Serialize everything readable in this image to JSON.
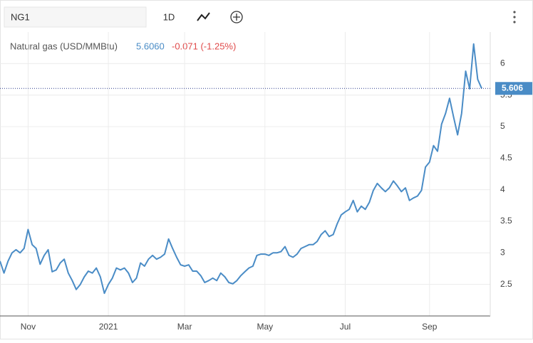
{
  "toolbar": {
    "symbol": "NG1",
    "interval": "1D"
  },
  "chart_data": {
    "type": "line",
    "title": "Natural gas (USD/MMBtu)",
    "price_label": "5.6060",
    "change": "-0.071 (-1.25%)",
    "last_price": 5.606,
    "categories": [
      null,
      null,
      null,
      null,
      null,
      null,
      null,
      "Nov",
      null,
      null,
      null,
      null,
      null,
      null,
      null,
      null,
      null,
      null,
      null,
      null,
      null,
      null,
      null,
      null,
      null,
      null,
      null,
      "2021",
      null,
      null,
      null,
      null,
      null,
      null,
      null,
      null,
      null,
      null,
      null,
      null,
      null,
      null,
      null,
      null,
      null,
      null,
      "Mar",
      null,
      null,
      null,
      null,
      null,
      null,
      null,
      null,
      null,
      null,
      null,
      null,
      null,
      null,
      null,
      null,
      null,
      null,
      null,
      "May",
      null,
      null,
      null,
      null,
      null,
      null,
      null,
      null,
      null,
      null,
      null,
      null,
      null,
      null,
      null,
      null,
      null,
      null,
      null,
      "Jul",
      null,
      null,
      null,
      null,
      null,
      null,
      null,
      null,
      null,
      null,
      null,
      null,
      null,
      null,
      null,
      null,
      null,
      null,
      null,
      null,
      "Sep",
      null,
      null,
      null,
      null,
      null,
      null,
      null,
      null,
      null,
      null,
      null,
      null,
      null
    ],
    "series": [
      {
        "name": "Natural gas",
        "color": "#4a8cc6",
        "values": [
          2.87,
          2.68,
          2.87,
          3.0,
          3.05,
          3.0,
          3.07,
          3.37,
          3.13,
          3.07,
          2.82,
          2.96,
          3.05,
          2.7,
          2.73,
          2.84,
          2.9,
          2.68,
          2.56,
          2.42,
          2.5,
          2.62,
          2.71,
          2.68,
          2.76,
          2.62,
          2.36,
          2.5,
          2.6,
          2.76,
          2.73,
          2.76,
          2.68,
          2.53,
          2.6,
          2.84,
          2.79,
          2.9,
          2.96,
          2.9,
          2.93,
          2.98,
          3.22,
          3.07,
          2.93,
          2.81,
          2.79,
          2.81,
          2.71,
          2.71,
          2.64,
          2.53,
          2.56,
          2.6,
          2.56,
          2.68,
          2.62,
          2.53,
          2.51,
          2.56,
          2.64,
          2.7,
          2.76,
          2.79,
          2.96,
          2.98,
          2.98,
          2.96,
          3.0,
          3.0,
          3.02,
          3.1,
          2.96,
          2.93,
          2.98,
          3.07,
          3.1,
          3.13,
          3.13,
          3.18,
          3.29,
          3.35,
          3.26,
          3.29,
          3.46,
          3.6,
          3.65,
          3.69,
          3.83,
          3.65,
          3.74,
          3.69,
          3.8,
          3.99,
          4.1,
          4.03,
          3.97,
          4.03,
          4.14,
          4.06,
          3.97,
          4.03,
          3.83,
          3.87,
          3.9,
          3.99,
          4.36,
          4.44,
          4.7,
          4.61,
          5.04,
          5.21,
          5.45,
          5.15,
          4.87,
          5.21,
          5.88,
          5.6,
          6.31,
          5.75,
          5.606
        ]
      }
    ],
    "ylim": [
      2,
      6.5
    ],
    "yticks": [
      2.5,
      3,
      3.5,
      4,
      4.5,
      5,
      5.5,
      6
    ],
    "grid": true
  }
}
